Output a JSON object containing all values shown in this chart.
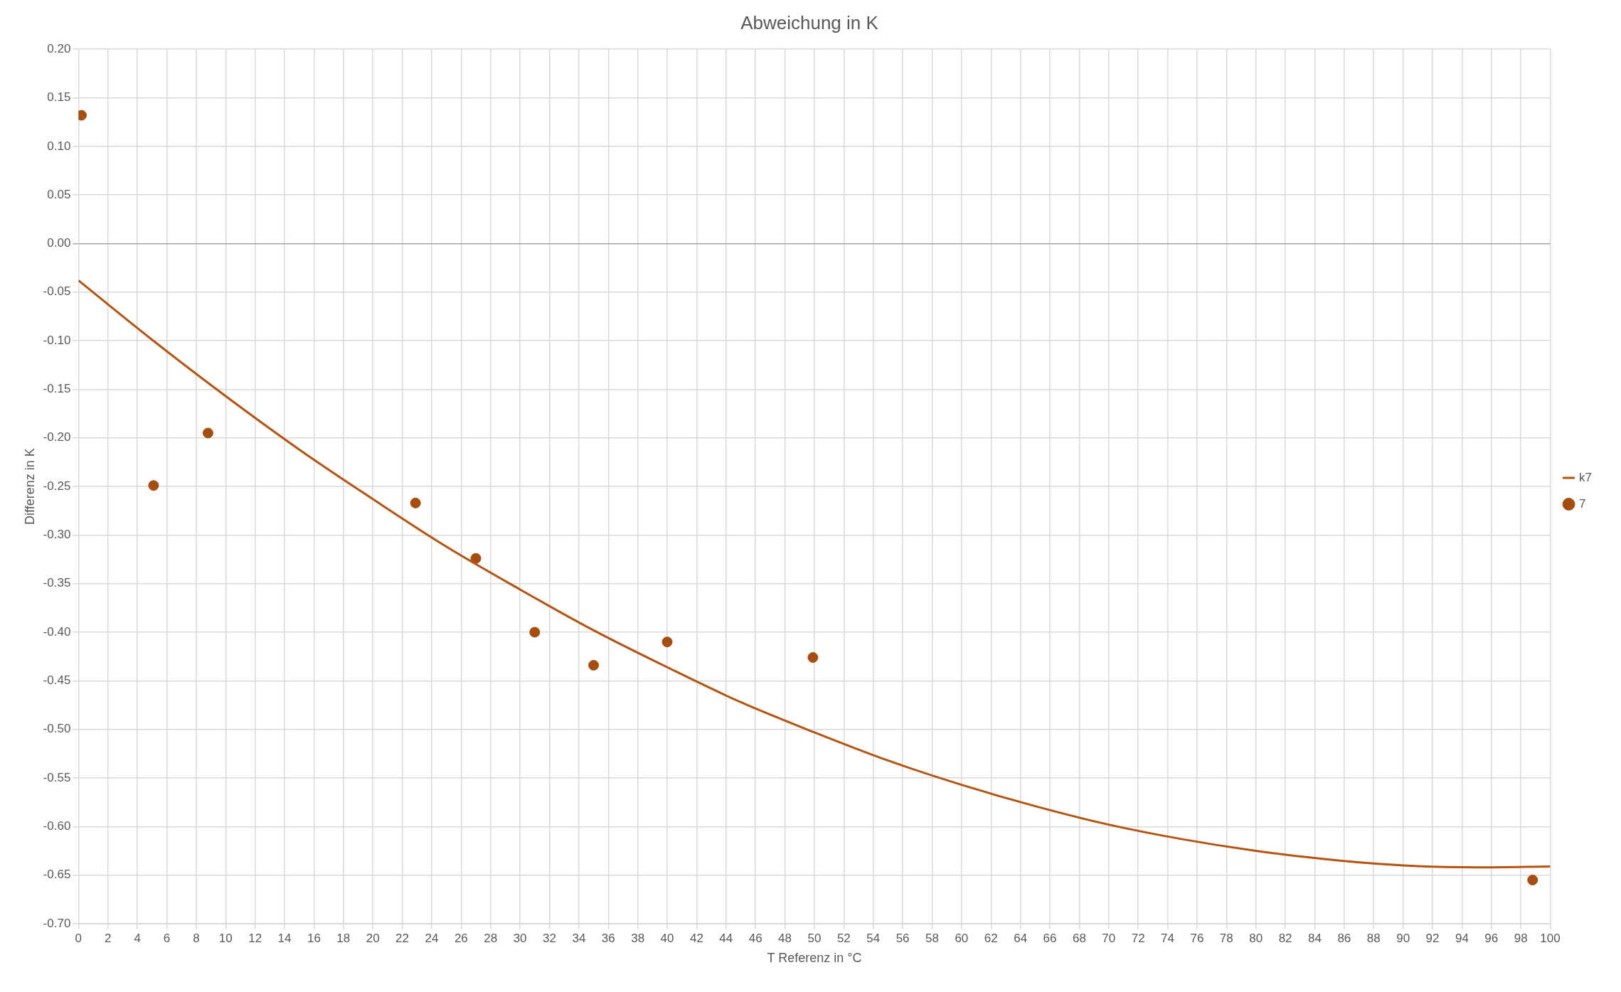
{
  "chart_data": {
    "type": "scatter",
    "title": "Abweichung in K",
    "xlabel": "T Referenz in °C",
    "ylabel": "Differenz in K",
    "xlim": [
      0,
      100
    ],
    "xticks": [
      0,
      2,
      4,
      6,
      8,
      10,
      12,
      14,
      16,
      18,
      20,
      22,
      24,
      26,
      28,
      30,
      32,
      34,
      36,
      38,
      40,
      42,
      44,
      46,
      48,
      50,
      52,
      54,
      56,
      58,
      60,
      62,
      64,
      66,
      68,
      70,
      72,
      74,
      76,
      78,
      80,
      82,
      84,
      86,
      88,
      90,
      92,
      94,
      96,
      98,
      100
    ],
    "ylim": [
      -0.7,
      0.2
    ],
    "yticks": [
      {
        "value": -0.7,
        "label": "-0.70"
      },
      {
        "value": -0.65,
        "label": "-0.65"
      },
      {
        "value": -0.6,
        "label": "-0.60"
      },
      {
        "value": -0.55,
        "label": "-0.55"
      },
      {
        "value": -0.5,
        "label": "-0.50"
      },
      {
        "value": -0.45,
        "label": "-0.45"
      },
      {
        "value": -0.4,
        "label": "-0.40"
      },
      {
        "value": -0.35,
        "label": "-0.35"
      },
      {
        "value": -0.3,
        "label": "-0.30"
      },
      {
        "value": -0.25,
        "label": "-0.25"
      },
      {
        "value": -0.2,
        "label": "-0.20"
      },
      {
        "value": -0.15,
        "label": "-0.15"
      },
      {
        "value": -0.1,
        "label": "-0.10"
      },
      {
        "value": -0.05,
        "label": "-0.05"
      },
      {
        "value": 0,
        "label": "0.00"
      },
      {
        "value": 0.05,
        "label": "0.05"
      },
      {
        "value": 0.1,
        "label": "0.10"
      },
      {
        "value": 0.15,
        "label": "0.15"
      },
      {
        "value": 0.2,
        "label": "0.20"
      }
    ],
    "grid": true,
    "legend": "right",
    "series": [
      {
        "name": "k7",
        "type": "line",
        "color": "#b5530f",
        "marker": "none",
        "x": [
          0,
          5,
          10,
          15,
          20,
          25,
          30,
          35,
          40,
          45,
          50,
          55,
          60,
          65,
          70,
          75,
          80,
          85,
          90,
          95,
          100
        ],
        "values": [
          -0.038,
          -0.099,
          -0.157,
          -0.212,
          -0.263,
          -0.312,
          -0.356,
          -0.398,
          -0.436,
          -0.472,
          -0.503,
          -0.532,
          -0.557,
          -0.579,
          -0.598,
          -0.613,
          -0.625,
          -0.634,
          -0.64,
          -0.642,
          -0.641
        ]
      },
      {
        "name": "7",
        "type": "scatter",
        "color": "#a84d10",
        "marker": "circle",
        "x": [
          0.2,
          5.1,
          8.8,
          22.9,
          27.0,
          31.0,
          35.0,
          40.0,
          49.9,
          98.8
        ],
        "values": [
          0.132,
          -0.249,
          -0.195,
          -0.267,
          -0.324,
          -0.4,
          -0.434,
          -0.41,
          -0.426,
          -0.655
        ]
      }
    ]
  }
}
